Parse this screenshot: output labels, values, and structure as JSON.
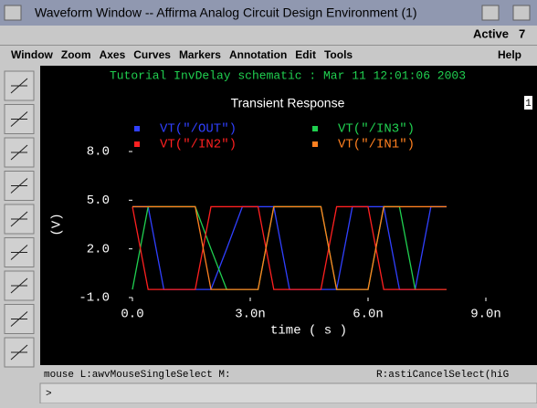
{
  "window": {
    "title": "Waveform Window -- Affirma Analog Circuit Design Environment (1)",
    "status": "Active",
    "count": "7",
    "menu": [
      "Window",
      "Zoom",
      "Axes",
      "Curves",
      "Markers",
      "Annotation",
      "Edit",
      "Tools"
    ],
    "help": "Help"
  },
  "chart_data": {
    "type": "line",
    "header": "Tutorial InvDelay schematic : Mar 11 12:01:06 2003",
    "title": "Transient Response",
    "subwindow": "1",
    "x": [
      0,
      0.4,
      0.8,
      1.2,
      1.6,
      2.0,
      2.4,
      2.8,
      3.2,
      3.6,
      4.0,
      4.4,
      4.8,
      5.2,
      5.6,
      6.0,
      6.4,
      6.8,
      7.2,
      7.6,
      8.0
    ],
    "series": [
      {
        "name": "VT(\"/OUT\")",
        "color": "#3040ff",
        "values": [
          4.6,
          4.6,
          -0.5,
          -0.5,
          -0.5,
          -0.5,
          2.0,
          4.6,
          4.6,
          4.6,
          -0.5,
          -0.5,
          -0.5,
          -0.5,
          4.6,
          4.6,
          4.6,
          -0.5,
          -0.5,
          4.6,
          4.6
        ]
      },
      {
        "name": "VT(\"/IN3\")",
        "color": "#20d050",
        "values": [
          -0.5,
          4.6,
          4.6,
          4.6,
          4.6,
          2.0,
          -0.5,
          -0.5,
          -0.5,
          4.6,
          4.6,
          4.6,
          4.6,
          -0.5,
          -0.5,
          -0.5,
          4.6,
          4.6,
          -0.5,
          -0.5,
          -0.5
        ]
      },
      {
        "name": "VT(\"/IN2\")",
        "color": "#ff2020",
        "values": [
          4.6,
          -0.5,
          -0.5,
          -0.5,
          -0.5,
          4.6,
          4.6,
          4.6,
          4.6,
          -0.5,
          -0.5,
          -0.5,
          -0.5,
          4.6,
          4.6,
          4.6,
          -0.5,
          -0.5,
          -0.5,
          -0.5,
          -0.5
        ]
      },
      {
        "name": "VT(\"/IN1\")",
        "color": "#ff8020",
        "values": [
          4.6,
          4.6,
          4.6,
          4.6,
          4.6,
          -0.5,
          -0.5,
          -0.5,
          -0.5,
          4.6,
          4.6,
          4.6,
          4.6,
          -0.5,
          -0.5,
          -0.5,
          4.6,
          4.6,
          4.6,
          4.6,
          4.6
        ]
      }
    ],
    "xlim": [
      0,
      9
    ],
    "xticks": [
      {
        "value": 0,
        "label": "0.0"
      },
      {
        "value": 3,
        "label": "3.0n"
      },
      {
        "value": 6,
        "label": "6.0n"
      },
      {
        "value": 9,
        "label": "9.0n"
      }
    ],
    "ylim": [
      -1,
      8
    ],
    "yticks": [
      {
        "value": -1,
        "label": "-1.0"
      },
      {
        "value": 2,
        "label": "2.0"
      },
      {
        "value": 5,
        "label": "5.0"
      },
      {
        "value": 8,
        "label": "8.0"
      }
    ],
    "xlabel": "time ( s )",
    "ylabel": "(V)"
  },
  "status_bar": {
    "left": "mouse L:awvMouseSingleSelect M:",
    "right": "R:astiCancelSelect(hiG"
  },
  "prompt": ">"
}
